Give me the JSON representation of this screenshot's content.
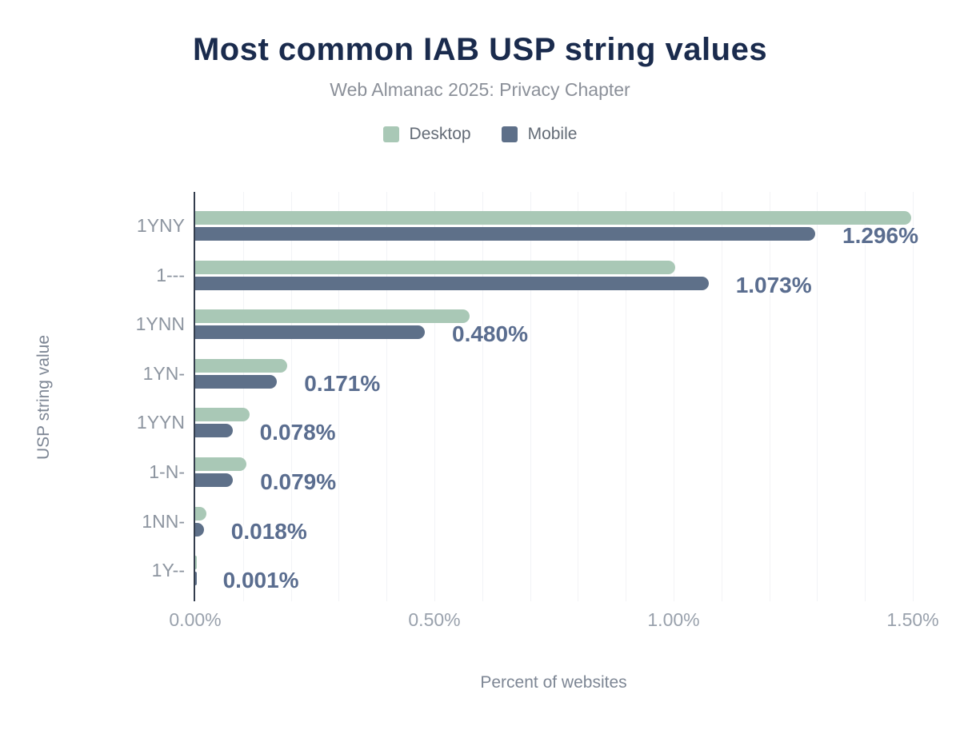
{
  "title": "Most common IAB USP string values",
  "subtitle": "Web Almanac 2025: Privacy Chapter",
  "legend": {
    "items": [
      {
        "label": "Desktop",
        "color": "#a9c8b6"
      },
      {
        "label": "Mobile",
        "color": "#5e7089"
      }
    ]
  },
  "colors": {
    "title": "#1a2b4d",
    "subtitle": "#8b9099",
    "axis_line": "#333d4d",
    "gridline": "#f2f3f6",
    "value_label": "#5a6d8f",
    "category_label": "#8d95a0",
    "tick_label": "#99a1ac"
  },
  "chart_data": {
    "type": "bar",
    "orientation": "horizontal",
    "title": "Most common IAB USP string values",
    "subtitle": "Web Almanac 2025: Privacy Chapter",
    "xlabel": "Percent of websites",
    "ylabel": "USP string value",
    "categories": [
      "1YNY",
      "1---",
      "1YNN",
      "1YN-",
      "1YYN",
      "1-N-",
      "1NN-",
      "1Y--"
    ],
    "series": [
      {
        "name": "Desktop",
        "color": "#a9c8b6",
        "values": [
          1.497,
          1.004,
          0.573,
          0.192,
          0.114,
          0.107,
          0.023,
          0.002
        ]
      },
      {
        "name": "Mobile",
        "color": "#5e7089",
        "values": [
          1.296,
          1.073,
          0.48,
          0.171,
          0.078,
          0.079,
          0.018,
          0.001
        ]
      }
    ],
    "data_labels": [
      "1.296%",
      "1.073%",
      "0.480%",
      "0.171%",
      "0.078%",
      "0.079%",
      "0.018%",
      "0.001%"
    ],
    "data_labels_series": "Mobile",
    "x_ticks": [
      "0.00%",
      "0.50%",
      "1.00%",
      "1.50%"
    ],
    "x_tick_values": [
      0,
      0.5,
      1.0,
      1.5
    ],
    "xlim": [
      0,
      1.5
    ],
    "grid_step": 0.1,
    "grid": true,
    "legend_position": "top"
  }
}
